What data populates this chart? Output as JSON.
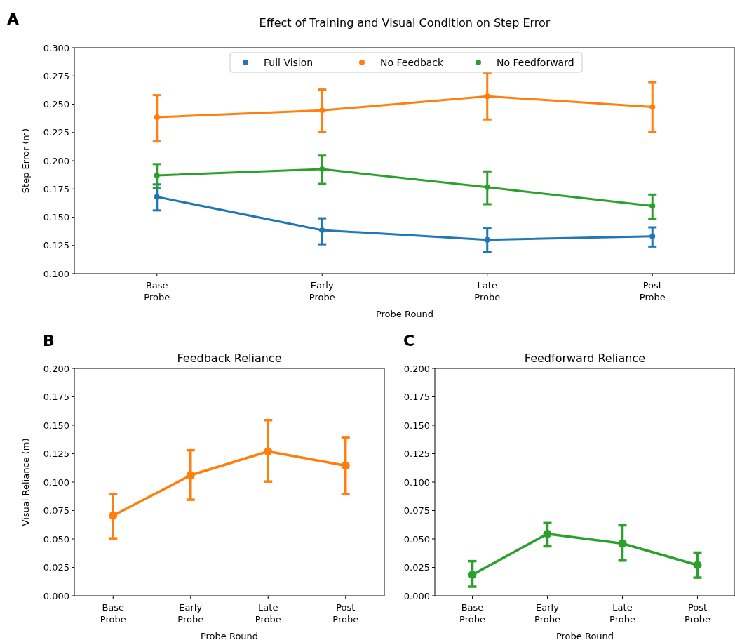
{
  "chart_data": [
    {
      "type": "line",
      "title": "Effect of Training and Visual Condition on Step Error",
      "xlabel": "Probe Round",
      "ylabel": "Step Error (m)",
      "annotations": [
        "A"
      ],
      "categories": [
        "Base\nProbe",
        "Early\nProbe",
        "Late\nProbe",
        "Post\nProbe"
      ],
      "ylim": [
        0.1,
        0.3
      ],
      "yticks": [
        {
          "value": 0.1,
          "label": "0.100"
        },
        {
          "value": 0.125,
          "label": "0.125"
        },
        {
          "value": 0.15,
          "label": "0.150"
        },
        {
          "value": 0.175,
          "label": "0.175"
        },
        {
          "value": 0.2,
          "label": "0.200"
        },
        {
          "value": 0.225,
          "label": "0.225"
        },
        {
          "value": 0.25,
          "label": "0.250"
        },
        {
          "value": 0.275,
          "label": "0.275"
        },
        {
          "value": 0.3,
          "label": "0.300"
        }
      ],
      "legend": "top",
      "marker": "circle",
      "grid": false,
      "series": [
        {
          "name": "Full Vision",
          "color": "#1f77b4",
          "values": [
            0.168,
            0.1385,
            0.13,
            0.133
          ],
          "errors": [
            [
              0.156,
              0.179
            ],
            [
              0.126,
              0.149
            ],
            [
              0.119,
              0.14
            ],
            [
              0.124,
              0.141
            ]
          ]
        },
        {
          "name": "No Feedback",
          "color": "#ff7f0e",
          "values": [
            0.2385,
            0.2445,
            0.257,
            0.2475
          ],
          "errors": [
            [
              0.217,
              0.258
            ],
            [
              0.2255,
              0.263
            ],
            [
              0.2365,
              0.278
            ],
            [
              0.2255,
              0.2695
            ]
          ]
        },
        {
          "name": "No Feedforward",
          "color": "#2ca02c",
          "values": [
            0.187,
            0.1925,
            0.1765,
            0.16
          ],
          "errors": [
            [
              0.176,
              0.197
            ],
            [
              0.1795,
              0.2045
            ],
            [
              0.1615,
              0.1905
            ],
            [
              0.1485,
              0.17
            ]
          ]
        }
      ]
    },
    {
      "type": "line",
      "title": "Feedback Reliance",
      "xlabel": "Probe Round",
      "ylabel": "Visual Reliance (m)",
      "annotations": [
        "B"
      ],
      "categories": [
        "Base\nProbe",
        "Early\nProbe",
        "Late\nProbe",
        "Post\nProbe"
      ],
      "ylim": [
        0,
        0.2
      ],
      "yticks": [
        {
          "value": 0,
          "label": "0.000"
        },
        {
          "value": 0.025,
          "label": "0.025"
        },
        {
          "value": 0.05,
          "label": "0.050"
        },
        {
          "value": 0.075,
          "label": "0.075"
        },
        {
          "value": 0.1,
          "label": "0.100"
        },
        {
          "value": 0.125,
          "label": "0.125"
        },
        {
          "value": 0.15,
          "label": "0.150"
        },
        {
          "value": 0.175,
          "label": "0.175"
        },
        {
          "value": 0.2,
          "label": "0.200"
        }
      ],
      "legend": false,
      "marker": "circle",
      "grid": false,
      "series": [
        {
          "color": "#ff7f0e",
          "values": [
            0.0705,
            0.106,
            0.127,
            0.1145
          ],
          "errors": [
            [
              0.0505,
              0.0895
            ],
            [
              0.0845,
              0.128
            ],
            [
              0.1005,
              0.1545
            ],
            [
              0.0895,
              0.139
            ]
          ]
        }
      ]
    },
    {
      "type": "line",
      "title": "Feedforward Reliance",
      "xlabel": "Probe Round",
      "annotations": [
        "C"
      ],
      "categories": [
        "Base\nProbe",
        "Early\nProbe",
        "Late\nProbe",
        "Post\nProbe"
      ],
      "ylim": [
        0,
        0.2
      ],
      "yticks": [
        {
          "value": 0,
          "label": "0.000"
        },
        {
          "value": 0.025,
          "label": "0.025"
        },
        {
          "value": 0.05,
          "label": "0.050"
        },
        {
          "value": 0.075,
          "label": "0.075"
        },
        {
          "value": 0.1,
          "label": "0.100"
        },
        {
          "value": 0.125,
          "label": "0.125"
        },
        {
          "value": 0.15,
          "label": "0.150"
        },
        {
          "value": 0.175,
          "label": "0.175"
        },
        {
          "value": 0.2,
          "label": "0.200"
        }
      ],
      "legend": false,
      "marker": "circle",
      "grid": false,
      "series": [
        {
          "color": "#2ca02c",
          "values": [
            0.0185,
            0.0545,
            0.046,
            0.027
          ],
          "errors": [
            [
              0.008,
              0.0305
            ],
            [
              0.0435,
              0.064
            ],
            [
              0.031,
              0.062
            ],
            [
              0.016,
              0.038
            ]
          ]
        }
      ]
    }
  ]
}
